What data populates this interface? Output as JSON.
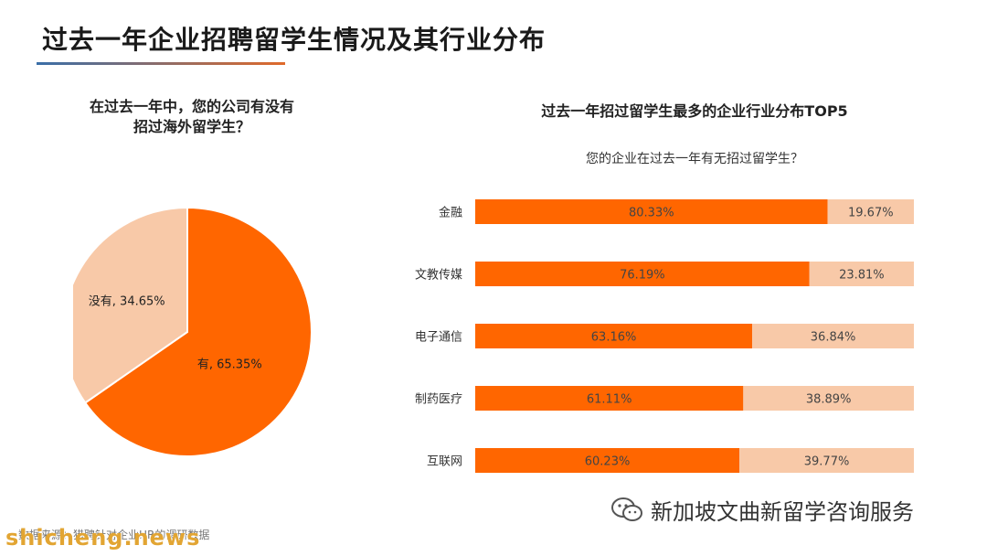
{
  "page": {
    "title": "过去一年企业招聘留学生情况及其行业分布"
  },
  "pie": {
    "title_line1": "在过去一年中，您的公司有没有",
    "title_line2": "招过海外留学生？"
  },
  "bars": {
    "title": "过去一年招过留学生最多的企业行业分布TOP5",
    "subtitle": "您的企业在过去一年有无招过留学生？"
  },
  "footer": {
    "source": "数据来源：猎聘针对企业HR的调研数据",
    "watermark_left": "shicheng.news",
    "watermark_right": "新加坡文曲新留学咨询服务",
    "watermark_icon": "wechat-icon"
  },
  "colors": {
    "primary": "#ff6600",
    "secondary": "#f8c9a8"
  },
  "chart_data": [
    {
      "type": "pie",
      "slices": [
        {
          "label": "有",
          "value": 65.35,
          "display": "有, 65.35%"
        },
        {
          "label": "没有",
          "value": 34.65,
          "display": "没有, 34.65%"
        }
      ]
    },
    {
      "type": "bar",
      "stacked": true,
      "orientation": "horizontal",
      "categories": [
        "金融",
        "文教传媒",
        "电子通信",
        "制药医疗",
        "互联网"
      ],
      "series": [
        {
          "values": [
            80.33,
            76.19,
            63.16,
            61.11,
            60.23
          ],
          "labels": [
            "80.33%",
            "76.19%",
            "63.16%",
            "61.11%",
            "60.23%"
          ]
        },
        {
          "values": [
            19.67,
            23.81,
            36.84,
            38.89,
            39.77
          ],
          "labels": [
            "19.67%",
            "23.81%",
            "36.84%",
            "38.89%",
            "39.77%"
          ]
        }
      ]
    }
  ]
}
